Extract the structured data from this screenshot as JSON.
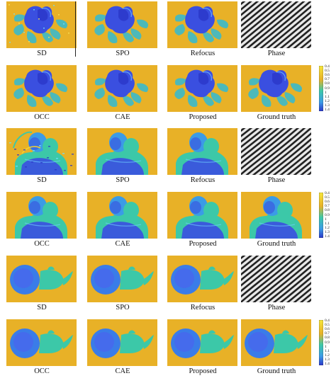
{
  "figure": {
    "rows": [
      {
        "scene": "flower",
        "labels": [
          "SD",
          "SPO",
          "Refocus",
          "Phase"
        ],
        "colorbar": false
      },
      {
        "scene": "flower",
        "labels": [
          "OCC",
          "CAE",
          "Proposed",
          "Ground truth"
        ],
        "colorbar": true
      },
      {
        "scene": "bust",
        "labels": [
          "SD",
          "SPO",
          "Refocus",
          "Phase"
        ],
        "colorbar": false
      },
      {
        "scene": "bust",
        "labels": [
          "OCC",
          "CAE",
          "Proposed",
          "Ground truth"
        ],
        "colorbar": true
      },
      {
        "scene": "teapot",
        "labels": [
          "SD",
          "SPO",
          "Refocus",
          "Phase"
        ],
        "colorbar": false
      },
      {
        "scene": "teapot",
        "labels": [
          "OCC",
          "CAE",
          "Proposed",
          "Ground truth"
        ],
        "colorbar": true
      }
    ],
    "colorbar_ticks": [
      "0.4",
      "0.5",
      "0.6",
      "0.7",
      "0.8",
      "0.9",
      "1",
      "1.1",
      "1.2",
      "1.3",
      "1.4"
    ],
    "colors": {
      "background": "#e8b127",
      "near": "#3a4fe0",
      "mid": "#3cc8a8",
      "far": "#f4d331"
    }
  }
}
